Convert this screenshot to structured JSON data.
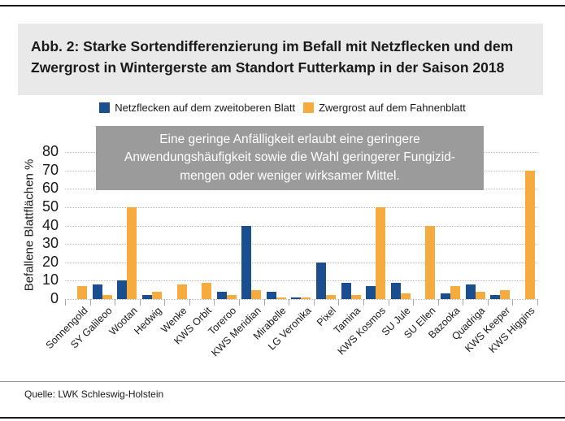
{
  "header": {
    "title_lines": [
      "Abb. 2: Starke Sortendifferenzierung im Befall mit Netzflecken und dem",
      "Zwergrost in Wintergerste am Standort Futterkamp in der Saison 2018"
    ]
  },
  "annotation": {
    "text": "Eine geringe Anfälligkeit erlaubt eine geringere Anwendungshäufigkeit sowie die Wahl geringerer Fungizid-mengen oder weniger wirksamer Mittel.",
    "lines": [
      "Eine geringe Anfälligkeit erlaubt eine geringere",
      "Anwendungshäufigkeit sowie die Wahl geringerer Fungizid-",
      "mengen oder weniger wirksamer Mittel."
    ]
  },
  "footer": {
    "source": "Quelle: LWK Schleswig-Holstein"
  },
  "colors": {
    "netzflecken_blue": "#1b4e8e",
    "zwergrost_orange": "#f5ab3d",
    "title_background": "#e9e9e9",
    "annotation_background": "#9b9b9b",
    "gridline_gray": "#bcbcbc"
  },
  "chart_data": {
    "type": "bar",
    "title": "",
    "xlabel": "",
    "ylabel": "Befallene Blattflächen %",
    "ylim": [
      0,
      80
    ],
    "yticks": [
      0,
      10,
      20,
      30,
      40,
      50,
      60,
      70,
      80
    ],
    "grid": "dotted horizontal gridlines at every 10",
    "legend_position": "top center",
    "categories": [
      "Sonnengold",
      "SY Galileoo",
      "Wootan",
      "Hedwig",
      "Wenke",
      "KWS Orbit",
      "Toreroo",
      "KWS Meridian",
      "Mirabelle",
      "LG Veronika",
      "Pixel",
      "Tamina",
      "KWS Kosmos",
      "SU Jule",
      "SU Ellen",
      "Bazooka",
      "Quadriga",
      "KWS Keeper",
      "KWS Higgins"
    ],
    "series": [
      {
        "name": "Netzflecken auf dem zweitoberen Blatt",
        "color": "#1b4e8e",
        "values": [
          0,
          8,
          10,
          2,
          0,
          0,
          4,
          40,
          4,
          1,
          20,
          9,
          7,
          9,
          0,
          3,
          8,
          2,
          0
        ]
      },
      {
        "name": "Zwergrost auf dem Fahnenblatt",
        "color": "#f5ab3d",
        "values": [
          7,
          2,
          50,
          4,
          8,
          9,
          2,
          5,
          1,
          1,
          2,
          2,
          50,
          3,
          40,
          7,
          4,
          5,
          70
        ]
      }
    ]
  }
}
